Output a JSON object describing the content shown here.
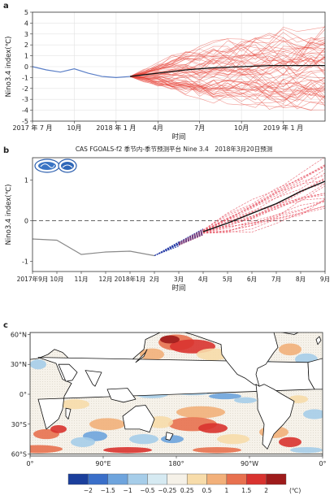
{
  "colors": {
    "observed_a": "#5b7fc7",
    "ensemble_a": "#e8463a",
    "mean_line": "#111111",
    "observed_b": "#8a8a8a",
    "init_b": "#2a3fa8",
    "ensemble_b": "#e85a6a",
    "land": "#ffffff",
    "ocean_neutral": "#f6f2ea"
  },
  "chart_data": [
    {
      "panel": "a",
      "type": "line",
      "ylabel": "Nino3.4 index(℃)",
      "xlabel": "时间",
      "ylim": [
        -5,
        5
      ],
      "yticks": [
        -5,
        -4,
        -3,
        -2,
        -1,
        0,
        1,
        2,
        3,
        4,
        5
      ],
      "xlim": [
        0,
        21
      ],
      "xticks": [
        {
          "x": 0,
          "label": "2017 年 7 月"
        },
        {
          "x": 3,
          "label": "10月"
        },
        {
          "x": 6,
          "label": "2018 年 1 月"
        },
        {
          "x": 9,
          "label": "4月"
        },
        {
          "x": 12,
          "label": "7月"
        },
        {
          "x": 15,
          "label": "10月"
        },
        {
          "x": 18,
          "label": "2019 年 1 月"
        }
      ],
      "observed": {
        "x": [
          0,
          1,
          2,
          3,
          4,
          5,
          6,
          7
        ],
        "y": [
          0,
          -0.3,
          -0.5,
          -0.2,
          -0.6,
          -0.9,
          -1.0,
          -0.9
        ]
      },
      "ensemble_mean": {
        "x": [
          7,
          9,
          11,
          13,
          15,
          17,
          19,
          21
        ],
        "y": [
          -0.9,
          -0.6,
          -0.3,
          -0.1,
          0.0,
          0.1,
          0.1,
          0.1
        ]
      },
      "ensemble_spread": {
        "x": [
          7,
          9,
          11,
          13,
          15,
          17,
          19,
          21
        ],
        "low": [
          -0.9,
          -1.7,
          -2.4,
          -2.8,
          -3.0,
          -3.2,
          -3.3,
          -3.4
        ],
        "high": [
          -0.9,
          0.2,
          1.2,
          1.8,
          2.3,
          2.7,
          3.0,
          3.2
        ]
      },
      "members": 60
    },
    {
      "panel": "b",
      "type": "line",
      "title": "CAS FGOALS-f2 季节内-季节预测平台 Nine 3.4　2018年3月20日预测",
      "ylabel": "Nino3.4 index(℃)",
      "xlabel": "时间",
      "ylim": [
        -1.25,
        1.55
      ],
      "yticks": [
        -1,
        0,
        1
      ],
      "xlim": [
        0,
        12
      ],
      "xticks": [
        {
          "x": 0,
          "label": "2017年9月"
        },
        {
          "x": 1,
          "label": "10月"
        },
        {
          "x": 2,
          "label": "11月"
        },
        {
          "x": 3,
          "label": "12月"
        },
        {
          "x": 4,
          "label": "2018年1月"
        },
        {
          "x": 5,
          "label": "2月"
        },
        {
          "x": 6,
          "label": "3月"
        },
        {
          "x": 7,
          "label": "4月"
        },
        {
          "x": 8,
          "label": "5月"
        },
        {
          "x": 9,
          "label": "6月"
        },
        {
          "x": 10,
          "label": "7月"
        },
        {
          "x": 11,
          "label": "8月"
        },
        {
          "x": 12,
          "label": "9月"
        }
      ],
      "observed": {
        "x": [
          0,
          1,
          2,
          3,
          4,
          5
        ],
        "y": [
          -0.45,
          -0.48,
          -0.83,
          -0.77,
          -0.75,
          -0.86
        ]
      },
      "initial_ensemble": {
        "x": [
          5,
          7
        ],
        "y_start": -0.86,
        "y_end_range": [
          -0.35,
          -0.2
        ]
      },
      "ensemble_mean": {
        "x": [
          7,
          8,
          9,
          10,
          11,
          12
        ],
        "y": [
          -0.27,
          -0.06,
          0.18,
          0.42,
          0.72,
          0.97
        ]
      },
      "ensemble_spread": {
        "x": [
          7,
          8,
          9,
          10,
          11,
          12
        ],
        "low": [
          -0.33,
          -0.28,
          -0.2,
          -0.08,
          0.08,
          0.25
        ],
        "high": [
          -0.2,
          0.15,
          0.45,
          0.85,
          1.15,
          1.45
        ]
      },
      "members": 25
    },
    {
      "panel": "c",
      "type": "heatmap",
      "description_units": "℃",
      "lon_ticks": [
        "0°",
        "90°E",
        "180°",
        "90°W",
        "0°"
      ],
      "lat_ticks": [
        "60°N",
        "30°N",
        "0°",
        "30°S",
        "60°S"
      ],
      "colorbar": {
        "ticks": [
          "−2",
          "−1.5",
          "−1",
          "−0.5",
          "−0.25",
          "0.25",
          "0.5",
          "1",
          "1.5",
          "2"
        ],
        "unit": "(℃)",
        "colors": [
          "#1b3f9c",
          "#3a6fc9",
          "#6ea4dd",
          "#a6cde9",
          "#d6eaf2",
          "#f5f1e8",
          "#f7dcaa",
          "#f2b07a",
          "#e8714f",
          "#d9332f",
          "#9e1b1b"
        ]
      }
    }
  ],
  "panels": {
    "a": {
      "letter": "a"
    },
    "b": {
      "letter": "b"
    },
    "c": {
      "letter": "c"
    }
  }
}
